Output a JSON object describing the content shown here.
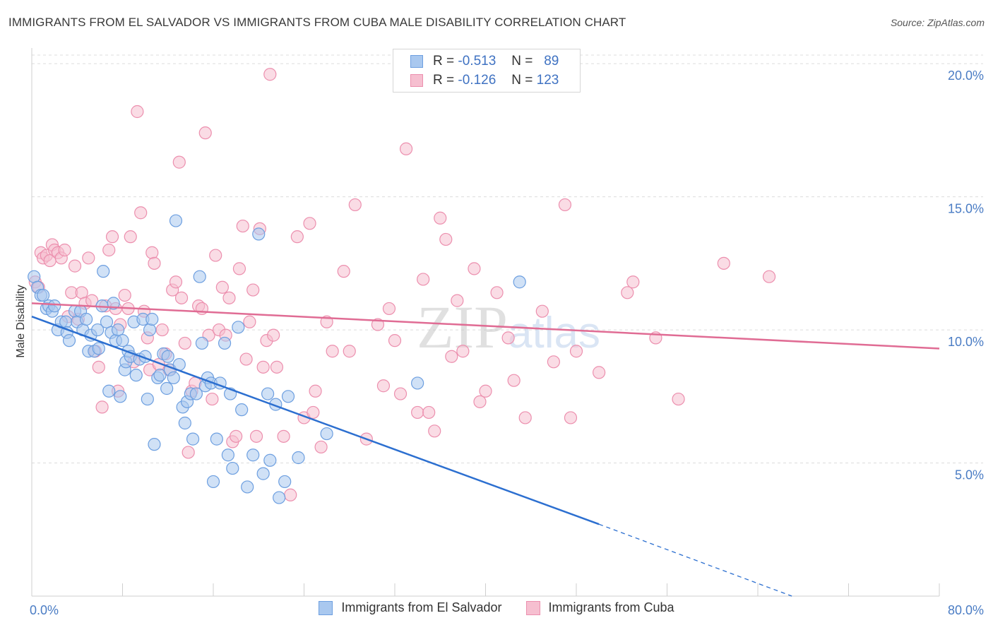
{
  "header": {
    "title": "IMMIGRANTS FROM EL SALVADOR VS IMMIGRANTS FROM CUBA MALE DISABILITY CORRELATION CHART",
    "source": "Source: ZipAtlas.com"
  },
  "watermark": "ZIPatlas",
  "colors": {
    "blue_fill": "#a9c8ef",
    "blue_stroke": "#6d9fe0",
    "blue_line": "#2c6fd0",
    "pink_fill": "#f6bfd0",
    "pink_stroke": "#ec8fae",
    "pink_line": "#e06c94",
    "grid": "#dcdcdc",
    "tick_text": "#4a7cc4"
  },
  "legend_top": {
    "rows": [
      {
        "r_label": "R =",
        "r_value": "-0.513",
        "n_label": "N =",
        "n_value": "89"
      },
      {
        "r_label": "R =",
        "r_value": "-0.126",
        "n_label": "N =",
        "n_value": "123"
      }
    ]
  },
  "legend_bottom": {
    "items": [
      {
        "label": "Immigrants from El Salvador"
      },
      {
        "label": "Immigrants from Cuba"
      }
    ]
  },
  "chart_data": {
    "type": "scatter",
    "title": "IMMIGRANTS FROM EL SALVADOR VS IMMIGRANTS FROM CUBA MALE DISABILITY CORRELATION CHART",
    "xlabel": "",
    "ylabel": "Male Disability",
    "xlim": [
      0,
      80
    ],
    "ylim": [
      0,
      20.8
    ],
    "x_tick_labels": [
      "0.0%",
      "80.0%"
    ],
    "y_ticks": [
      5,
      10,
      15,
      20
    ],
    "y_tick_labels": [
      "5.0%",
      "10.0%",
      "15.0%",
      "20.0%"
    ],
    "grid": true,
    "legend_position": "top-center",
    "series": [
      {
        "name": "Immigrants from El Salvador",
        "r": -0.513,
        "n": 89,
        "trend": {
          "x0": 0,
          "y0": 10.5,
          "x1": 50,
          "y1": 2.7,
          "dashed_to_x": 67,
          "dashed_to_y": 0.0
        },
        "points": [
          [
            0.2,
            12.0
          ],
          [
            0.5,
            11.6
          ],
          [
            0.8,
            11.3
          ],
          [
            1.0,
            11.3
          ],
          [
            1.3,
            10.8
          ],
          [
            1.5,
            10.9
          ],
          [
            1.8,
            10.7
          ],
          [
            2.0,
            10.9
          ],
          [
            2.3,
            10.0
          ],
          [
            2.6,
            10.3
          ],
          [
            3.0,
            10.3
          ],
          [
            3.1,
            9.9
          ],
          [
            3.3,
            9.6
          ],
          [
            3.8,
            10.7
          ],
          [
            4.0,
            10.3
          ],
          [
            4.3,
            10.7
          ],
          [
            4.5,
            10.0
          ],
          [
            4.8,
            10.4
          ],
          [
            5.0,
            9.2
          ],
          [
            5.2,
            9.8
          ],
          [
            5.5,
            9.2
          ],
          [
            5.8,
            10.0
          ],
          [
            5.9,
            9.3
          ],
          [
            6.2,
            10.9
          ],
          [
            6.3,
            12.2
          ],
          [
            6.6,
            10.3
          ],
          [
            6.8,
            7.7
          ],
          [
            7.0,
            9.9
          ],
          [
            7.2,
            11.0
          ],
          [
            7.4,
            9.6
          ],
          [
            7.6,
            10.0
          ],
          [
            7.8,
            7.5
          ],
          [
            8.0,
            9.6
          ],
          [
            8.2,
            8.5
          ],
          [
            8.3,
            8.8
          ],
          [
            8.5,
            9.2
          ],
          [
            8.7,
            9.0
          ],
          [
            9.0,
            10.3
          ],
          [
            9.2,
            8.3
          ],
          [
            9.5,
            8.9
          ],
          [
            9.8,
            10.4
          ],
          [
            10.0,
            9.0
          ],
          [
            10.2,
            7.4
          ],
          [
            10.4,
            10.0
          ],
          [
            10.6,
            10.4
          ],
          [
            10.8,
            5.7
          ],
          [
            11.1,
            8.2
          ],
          [
            11.3,
            8.3
          ],
          [
            11.6,
            9.1
          ],
          [
            11.9,
            7.8
          ],
          [
            12.0,
            9.0
          ],
          [
            12.2,
            8.5
          ],
          [
            12.5,
            8.2
          ],
          [
            12.7,
            14.1
          ],
          [
            13.0,
            8.7
          ],
          [
            13.3,
            7.1
          ],
          [
            13.5,
            6.5
          ],
          [
            13.7,
            7.3
          ],
          [
            14.0,
            7.6
          ],
          [
            14.2,
            5.9
          ],
          [
            14.5,
            7.6
          ],
          [
            14.8,
            12.0
          ],
          [
            15.0,
            9.5
          ],
          [
            15.3,
            7.9
          ],
          [
            15.5,
            8.2
          ],
          [
            15.8,
            8.0
          ],
          [
            16.0,
            4.3
          ],
          [
            16.3,
            5.9
          ],
          [
            16.6,
            8.0
          ],
          [
            17.0,
            9.5
          ],
          [
            17.3,
            5.3
          ],
          [
            17.5,
            7.6
          ],
          [
            17.7,
            4.8
          ],
          [
            18.2,
            10.1
          ],
          [
            18.5,
            7.0
          ],
          [
            19.0,
            4.1
          ],
          [
            19.5,
            5.3
          ],
          [
            20.0,
            13.6
          ],
          [
            20.4,
            4.6
          ],
          [
            20.8,
            7.6
          ],
          [
            21.0,
            5.1
          ],
          [
            21.5,
            7.2
          ],
          [
            21.8,
            3.7
          ],
          [
            22.3,
            4.3
          ],
          [
            22.6,
            7.5
          ],
          [
            23.5,
            5.2
          ],
          [
            26.0,
            6.1
          ],
          [
            34.0,
            8.0
          ],
          [
            43.0,
            11.8
          ]
        ]
      },
      {
        "name": "Immigrants from Cuba",
        "r": -0.126,
        "n": 123,
        "trend": {
          "x0": 0,
          "y0": 11.0,
          "x1": 80,
          "y1": 9.3
        },
        "points": [
          [
            0.3,
            11.8
          ],
          [
            0.6,
            11.6
          ],
          [
            0.8,
            12.9
          ],
          [
            1.0,
            12.7
          ],
          [
            1.3,
            12.8
          ],
          [
            1.6,
            12.6
          ],
          [
            1.8,
            13.2
          ],
          [
            2.0,
            13.0
          ],
          [
            2.3,
            12.9
          ],
          [
            2.6,
            12.7
          ],
          [
            2.9,
            13.0
          ],
          [
            3.2,
            10.5
          ],
          [
            3.5,
            11.4
          ],
          [
            3.8,
            12.4
          ],
          [
            4.1,
            10.4
          ],
          [
            4.4,
            11.4
          ],
          [
            4.7,
            11.0
          ],
          [
            5.0,
            12.7
          ],
          [
            5.3,
            11.1
          ],
          [
            5.6,
            9.2
          ],
          [
            5.9,
            8.6
          ],
          [
            6.2,
            7.1
          ],
          [
            6.5,
            10.9
          ],
          [
            6.8,
            13.0
          ],
          [
            7.1,
            13.5
          ],
          [
            7.4,
            10.8
          ],
          [
            7.6,
            7.7
          ],
          [
            7.8,
            10.2
          ],
          [
            8.2,
            11.3
          ],
          [
            8.5,
            10.8
          ],
          [
            8.7,
            13.5
          ],
          [
            9.0,
            8.8
          ],
          [
            9.3,
            18.2
          ],
          [
            9.6,
            14.4
          ],
          [
            9.9,
            10.7
          ],
          [
            10.2,
            9.7
          ],
          [
            10.4,
            8.5
          ],
          [
            10.6,
            12.9
          ],
          [
            10.8,
            12.5
          ],
          [
            11.2,
            8.7
          ],
          [
            11.5,
            10.0
          ],
          [
            11.8,
            9.1
          ],
          [
            12.1,
            8.5
          ],
          [
            12.4,
            11.5
          ],
          [
            12.7,
            11.8
          ],
          [
            13.0,
            16.3
          ],
          [
            13.2,
            11.2
          ],
          [
            13.5,
            9.5
          ],
          [
            13.8,
            5.4
          ],
          [
            14.1,
            7.7
          ],
          [
            14.4,
            8.0
          ],
          [
            14.7,
            10.9
          ],
          [
            15.0,
            10.8
          ],
          [
            15.3,
            17.4
          ],
          [
            15.6,
            9.8
          ],
          [
            15.9,
            7.4
          ],
          [
            16.2,
            12.8
          ],
          [
            16.5,
            10.0
          ],
          [
            16.8,
            11.6
          ],
          [
            17.1,
            9.8
          ],
          [
            17.4,
            11.2
          ],
          [
            17.7,
            5.8
          ],
          [
            18.0,
            6.0
          ],
          [
            18.3,
            12.3
          ],
          [
            18.6,
            13.9
          ],
          [
            18.9,
            8.9
          ],
          [
            19.2,
            10.3
          ],
          [
            19.5,
            11.5
          ],
          [
            19.8,
            6.0
          ],
          [
            20.1,
            13.8
          ],
          [
            20.4,
            8.6
          ],
          [
            20.7,
            9.6
          ],
          [
            21.0,
            19.6
          ],
          [
            21.3,
            9.8
          ],
          [
            21.6,
            8.6
          ],
          [
            22.2,
            6.0
          ],
          [
            22.8,
            3.8
          ],
          [
            23.4,
            13.5
          ],
          [
            24.0,
            6.7
          ],
          [
            24.5,
            14.0
          ],
          [
            24.8,
            6.9
          ],
          [
            25.0,
            7.7
          ],
          [
            25.5,
            5.6
          ],
          [
            26.0,
            10.3
          ],
          [
            26.5,
            9.2
          ],
          [
            27.5,
            12.2
          ],
          [
            28.0,
            9.2
          ],
          [
            28.5,
            14.7
          ],
          [
            29.5,
            5.9
          ],
          [
            30.5,
            10.2
          ],
          [
            31.0,
            7.9
          ],
          [
            31.5,
            10.8
          ],
          [
            32.0,
            9.6
          ],
          [
            32.5,
            7.6
          ],
          [
            33.0,
            16.8
          ],
          [
            34.0,
            6.9
          ],
          [
            34.5,
            11.9
          ],
          [
            35.0,
            6.9
          ],
          [
            35.5,
            6.2
          ],
          [
            36.0,
            14.2
          ],
          [
            36.5,
            13.4
          ],
          [
            37.0,
            9.0
          ],
          [
            37.5,
            11.1
          ],
          [
            38.0,
            9.2
          ],
          [
            39.0,
            12.3
          ],
          [
            39.5,
            7.3
          ],
          [
            40.0,
            7.7
          ],
          [
            41.0,
            11.4
          ],
          [
            42.0,
            9.7
          ],
          [
            42.5,
            8.1
          ],
          [
            43.5,
            6.7
          ],
          [
            45.0,
            10.7
          ],
          [
            46.0,
            8.8
          ],
          [
            47.0,
            14.7
          ],
          [
            47.5,
            6.7
          ],
          [
            48.0,
            9.2
          ],
          [
            50.0,
            8.4
          ],
          [
            52.5,
            11.4
          ],
          [
            53.0,
            11.8
          ],
          [
            55.0,
            9.7
          ],
          [
            57.0,
            7.4
          ],
          [
            61.0,
            12.5
          ],
          [
            65.0,
            12.0
          ]
        ]
      }
    ]
  }
}
